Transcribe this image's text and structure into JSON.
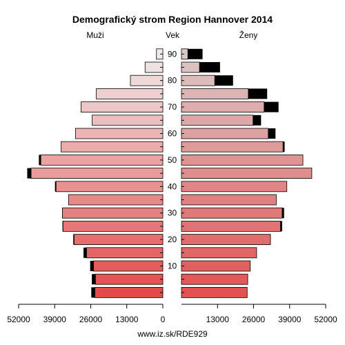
{
  "chart_data": {
    "type": "bar",
    "title": "Demografický strom Region Hannover 2014",
    "left_label": "Muži",
    "center_label": "Vek",
    "right_label": "Ženy",
    "footer": "www.iz.sk/RDE929",
    "xlim": [
      0,
      52000
    ],
    "x_tick_values": [
      52000,
      39000,
      26000,
      13000,
      0,
      13000,
      26000,
      39000,
      52000
    ],
    "x_tick_labels": [
      "52000",
      "39000",
      "26000",
      "13000",
      "0",
      "13000",
      "26000",
      "39000",
      "52000"
    ],
    "age_tick_labels": [
      "10",
      "20",
      "30",
      "40",
      "50",
      "60",
      "70",
      "80",
      "90"
    ],
    "age_groups": [
      "0-4",
      "5-9",
      "10-14",
      "15-19",
      "20-24",
      "25-29",
      "30-34",
      "35-39",
      "40-44",
      "45-49",
      "50-54",
      "55-59",
      "60-64",
      "65-69",
      "70-74",
      "75-79",
      "80-84",
      "85-89",
      "90+"
    ],
    "series": [
      {
        "name": "Muži",
        "values": [
          24500,
          24300,
          25000,
          27500,
          32000,
          36000,
          36200,
          34000,
          38500,
          47500,
          44000,
          36700,
          31500,
          25500,
          29500,
          24000,
          11700,
          6400,
          2300
        ],
        "excess": [
          1300,
          1300,
          1200,
          1100,
          300,
          200,
          100,
          0,
          400,
          1400,
          700,
          0,
          0,
          0,
          0,
          0,
          0,
          0,
          0
        ]
      },
      {
        "name": "Ženy",
        "values": [
          23700,
          23900,
          24800,
          27100,
          32100,
          35700,
          36300,
          34200,
          38000,
          47000,
          43800,
          36600,
          31300,
          25800,
          29800,
          24100,
          12000,
          6500,
          2300
        ],
        "excess": [
          0,
          0,
          0,
          0,
          0,
          600,
          700,
          0,
          0,
          0,
          0,
          600,
          2600,
          2900,
          5200,
          6800,
          6600,
          7400,
          5300
        ]
      }
    ],
    "colors": {
      "excess": "#000000",
      "outline": "#000000",
      "male_bottom": "#e34b4b",
      "male_top": "#f0eaea",
      "female_bottom": "#e35252",
      "female_top": "#dcc8c8"
    }
  }
}
